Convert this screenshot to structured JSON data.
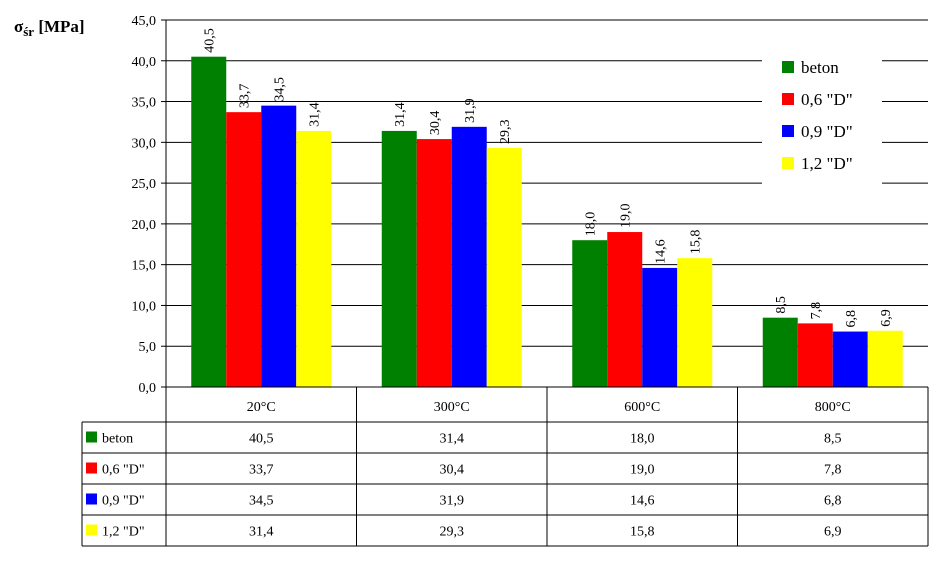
{
  "chart_data": {
    "type": "bar",
    "ylabel_main": "σ",
    "ylabel_sub": "śr",
    "ylabel_unit": " [MPa]",
    "ylim": [
      0,
      45
    ],
    "ytick_step": 5,
    "ytick_labels": [
      "0,0",
      "5,0",
      "10,0",
      "15,0",
      "20,0",
      "25,0",
      "30,0",
      "35,0",
      "40,0",
      "45,0"
    ],
    "grid": true,
    "legend_position": "top-right",
    "categories": [
      "20°C",
      "300°C",
      "600°C",
      "800°C"
    ],
    "series": [
      {
        "name": "beton",
        "color": "#008000",
        "values": [
          40.5,
          31.4,
          18.0,
          8.5
        ],
        "labels": [
          "40,5",
          "31,4",
          "18,0",
          "8,5"
        ]
      },
      {
        "name": "0,6 \"D\"",
        "color": "#ff0000",
        "values": [
          33.7,
          30.4,
          19.0,
          7.8
        ],
        "labels": [
          "33,7",
          "30,4",
          "19,0",
          "7,8"
        ]
      },
      {
        "name": "0,9 \"D\"",
        "color": "#0000ff",
        "values": [
          34.5,
          31.9,
          14.6,
          6.8
        ],
        "labels": [
          "34,5",
          "31,9",
          "14,6",
          "6,8"
        ]
      },
      {
        "name": "1,2 \"D\"",
        "color": "#ffff00",
        "values": [
          31.4,
          29.3,
          15.8,
          6.9
        ],
        "labels": [
          "31,4",
          "29,3",
          "15,8",
          "6,9"
        ]
      }
    ]
  }
}
